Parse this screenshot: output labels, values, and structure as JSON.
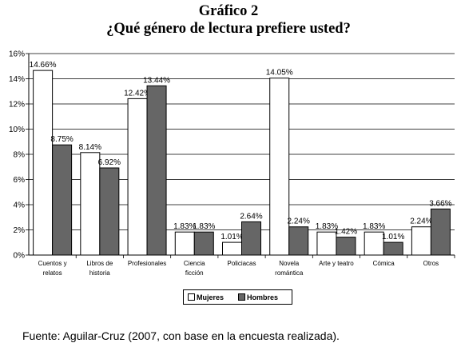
{
  "title": "Gráfico 2",
  "subtitle": "¿Qué género de lectura prefiere usted?",
  "source": "Fuente: Aguilar-Cruz (2007, con base en la encuesta realizada).",
  "colors": {
    "mujeres": "#ffffff",
    "hombres": "#666666",
    "outline": "#000000"
  },
  "chart_data": {
    "type": "bar",
    "categories": [
      [
        "Cuentos y",
        "relatos"
      ],
      [
        "Libros de",
        "historia"
      ],
      [
        "Profesionales"
      ],
      [
        "Ciencia",
        "ficción"
      ],
      [
        "Policiacas"
      ],
      [
        "Novela",
        "romántica"
      ],
      [
        "Arte y teatro"
      ],
      [
        "Cómica"
      ],
      [
        "Otros"
      ]
    ],
    "series": [
      {
        "name": "Mujeres",
        "values": [
          14.66,
          8.14,
          12.42,
          1.83,
          1.01,
          14.05,
          1.83,
          1.83,
          2.24
        ],
        "labels": [
          "14.66%",
          "8.14%",
          "12.42%",
          "1.83%",
          "1.01%",
          "14.05%",
          "1.83%",
          "1.83%",
          "2.24%"
        ]
      },
      {
        "name": "Hombres",
        "values": [
          8.75,
          6.92,
          13.44,
          1.83,
          2.64,
          2.24,
          1.42,
          1.01,
          3.66
        ],
        "labels": [
          "8.75%",
          "6.92%",
          "13.44%",
          "1.83%",
          "2.64%",
          "2.24%",
          "1.42%",
          "1.01%",
          "3.66%"
        ]
      }
    ],
    "ylim": [
      0,
      16
    ],
    "yticks": [
      "0%",
      "2%",
      "4%",
      "6%",
      "8%",
      "10%",
      "12%",
      "14%",
      "16%"
    ],
    "grid": true,
    "legend": "bottom"
  }
}
